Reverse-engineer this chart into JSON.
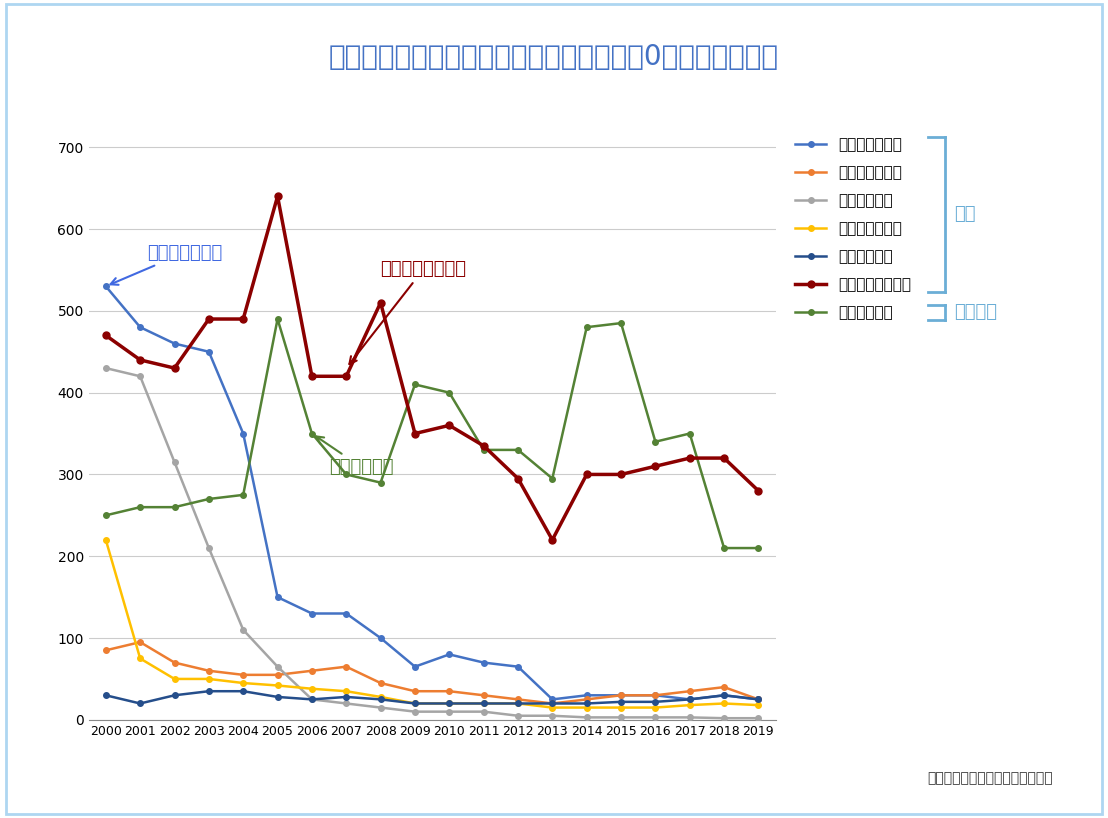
{
  "title": "食中毒発生状況（病因物質別事件数、平成0年〜令和元年）",
  "years": [
    2000,
    2001,
    2002,
    2003,
    2004,
    2005,
    2006,
    2007,
    2008,
    2009,
    2010,
    2011,
    2012,
    2013,
    2014,
    2015,
    2016,
    2017,
    2018,
    2019
  ],
  "salmonella": [
    530,
    480,
    460,
    450,
    350,
    150,
    130,
    130,
    100,
    65,
    80,
    70,
    65,
    25,
    30,
    30,
    30,
    25,
    30,
    25
  ],
  "staph": [
    85,
    95,
    70,
    60,
    55,
    55,
    60,
    65,
    45,
    35,
    35,
    30,
    25,
    20,
    25,
    30,
    30,
    35,
    40,
    25
  ],
  "vibrio": [
    430,
    420,
    315,
    210,
    110,
    65,
    25,
    20,
    15,
    10,
    10,
    10,
    5,
    5,
    3,
    3,
    3,
    3,
    2,
    2
  ],
  "ecoli": [
    220,
    75,
    50,
    50,
    45,
    42,
    38,
    35,
    28,
    20,
    20,
    20,
    20,
    15,
    15,
    15,
    15,
    18,
    20,
    18
  ],
  "welch": [
    30,
    20,
    30,
    35,
    35,
    28,
    25,
    28,
    25,
    20,
    20,
    20,
    20,
    20,
    20,
    22,
    22,
    25,
    30,
    25
  ],
  "campylobacter": [
    470,
    440,
    430,
    490,
    490,
    640,
    420,
    420,
    510,
    350,
    360,
    335,
    295,
    220,
    300,
    300,
    310,
    320,
    320,
    280
  ],
  "norovirus": [
    250,
    260,
    260,
    270,
    275,
    490,
    350,
    300,
    290,
    410,
    400,
    330,
    330,
    295,
    480,
    485,
    340,
    350,
    210,
    210
  ],
  "color_salmonella": "#4472C4",
  "color_staph": "#ED7D31",
  "color_vibrio": "#A5A5A5",
  "color_ecoli": "#FFC000",
  "color_welch": "#254E8B",
  "color_campylobacter": "#8B0000",
  "color_norovirus": "#548235",
  "title_color": "#4472C4",
  "bracket_color": "#6BAED6",
  "annotation_color_salmonella": "#4169E1",
  "annotation_color_campylobacter": "#8B0000",
  "annotation_color_norovirus": "#548235",
  "legend_labels": [
    "サルモネラ属菌",
    "黄色ブドウ球菌",
    "腸炎ビブリオ",
    "下痢原性大腸菌",
    "ウェルシュ菌",
    "カンピロバクター",
    "ノロウイルス"
  ],
  "source_text": "出典：厚生労働省食中毒統計資料",
  "bracket_label_bacteria": "細菌",
  "bracket_label_virus": "ウイルス",
  "background_color": "#FFFFFF",
  "ylim": [
    0,
    720
  ],
  "yticks": [
    0,
    100,
    200,
    300,
    400,
    500,
    600,
    700
  ]
}
